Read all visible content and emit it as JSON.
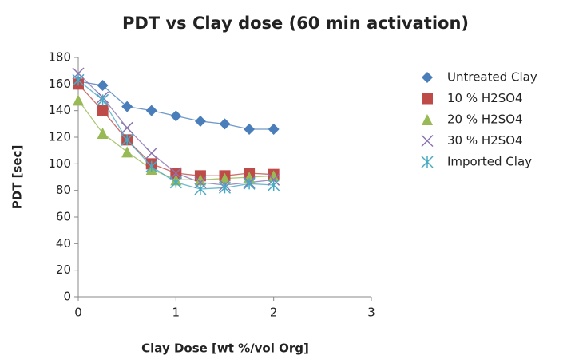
{
  "chart_data": {
    "type": "scatter",
    "title": "PDT vs Clay dose (60 min activation)",
    "x_label": "Clay Dose [wt %/vol Org]",
    "y_label": "PDT [sec]",
    "xlim": [
      0,
      3
    ],
    "xticks": [
      0,
      1,
      2,
      3
    ],
    "ylim": [
      0,
      180
    ],
    "yticks": [
      0,
      20,
      40,
      60,
      80,
      100,
      120,
      140,
      160,
      180
    ],
    "legend": "right",
    "series": [
      {
        "name": "Untreated Clay",
        "color": "#4a7ebb",
        "marker": "diamond",
        "x": [
          0,
          0.25,
          0.5,
          0.75,
          1,
          1.25,
          1.5,
          1.75,
          2
        ],
        "values": [
          162,
          159,
          143,
          140,
          136,
          132,
          130,
          126,
          126
        ]
      },
      {
        "name": "10 % H2SO4",
        "color": "#be4b48",
        "marker": "square",
        "x": [
          0,
          0.25,
          0.5,
          0.75,
          1,
          1.25,
          1.5,
          1.75,
          2
        ],
        "values": [
          160,
          140,
          118,
          100,
          93,
          91,
          91,
          93,
          92
        ]
      },
      {
        "name": "20 % H2SO4",
        "color": "#98b954",
        "marker": "triangle",
        "x": [
          0,
          0.25,
          0.5,
          0.75,
          1,
          1.25,
          1.5,
          1.75,
          2
        ],
        "values": [
          148,
          123,
          109,
          96,
          88,
          88,
          89,
          90,
          91
        ]
      },
      {
        "name": "30 % H2SO4",
        "color": "#8b74b0",
        "marker": "cross",
        "x": [
          0,
          0.25,
          0.5,
          0.75,
          1,
          1.25,
          1.5,
          1.75,
          2
        ],
        "values": [
          168,
          150,
          127,
          108,
          93,
          86,
          84,
          86,
          88
        ]
      },
      {
        "name": "Imported Clay",
        "color": "#46aac5",
        "marker": "star",
        "x": [
          0,
          0.25,
          0.5,
          0.75,
          1,
          1.25,
          1.5,
          1.75,
          2
        ],
        "values": [
          163,
          148,
          118,
          98,
          86,
          81,
          82,
          85,
          84
        ]
      }
    ]
  }
}
